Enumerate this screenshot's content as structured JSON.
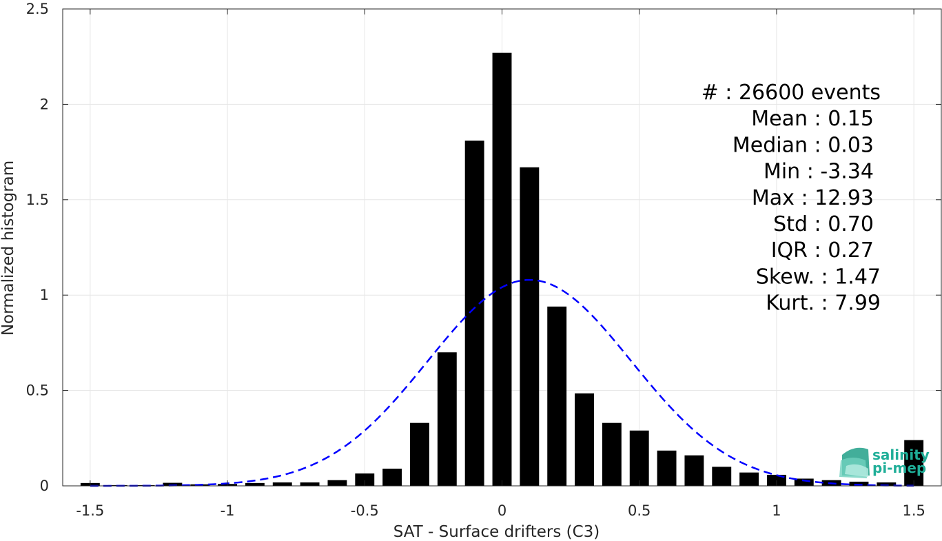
{
  "chart_data": {
    "type": "bar",
    "xlabel": "SAT - Surface drifters (C3)",
    "ylabel": "Normalized histogram",
    "xlim": [
      -1.6,
      1.6
    ],
    "ylim": [
      0,
      2.5
    ],
    "xticks": [
      -1.5,
      -1,
      -0.5,
      0,
      0.5,
      1,
      1.5
    ],
    "xtick_labels": [
      "-1.5",
      "-1",
      "-0.5",
      "0",
      "0.5",
      "1",
      "1.5"
    ],
    "yticks": [
      0,
      0.5,
      1,
      1.5,
      2,
      2.5
    ],
    "ytick_labels": [
      "0",
      "0.5",
      "1",
      "1.5",
      "2",
      "2.5"
    ],
    "grid": true,
    "bar_color": "#000000",
    "curve_color": "#0000ff",
    "bins": {
      "centers": [
        -1.5,
        -1.4,
        -1.3,
        -1.2,
        -1.1,
        -1.0,
        -0.9,
        -0.8,
        -0.7,
        -0.6,
        -0.5,
        -0.4,
        -0.3,
        -0.2,
        -0.1,
        0.0,
        0.1,
        0.2,
        0.3,
        0.4,
        0.5,
        0.6,
        0.7,
        0.8,
        0.9,
        1.0,
        1.1,
        1.2,
        1.3,
        1.4,
        1.5
      ],
      "values": [
        0.015,
        0.004,
        0.004,
        0.016,
        0.008,
        0.01,
        0.015,
        0.018,
        0.018,
        0.03,
        0.065,
        0.09,
        0.33,
        0.7,
        1.81,
        2.27,
        1.67,
        0.94,
        0.485,
        0.33,
        0.29,
        0.185,
        0.16,
        0.1,
        0.07,
        0.058,
        0.038,
        0.03,
        0.022,
        0.018,
        0.24
      ]
    },
    "gaussian_fit": {
      "mean": 0.1,
      "std": 0.37,
      "peak": 1.08
    },
    "stats": [
      "#  : 26600 events",
      "Mean : 0.15",
      "Median : 0.03",
      "Min : -3.34",
      "Max : 12.93",
      "Std : 0.70",
      "IQR : 0.27",
      "Skew. : 1.47",
      "Kurt. : 7.99"
    ]
  },
  "logo": {
    "line1": "salinity",
    "line2": "pi-mep",
    "color": "#1fae98"
  }
}
